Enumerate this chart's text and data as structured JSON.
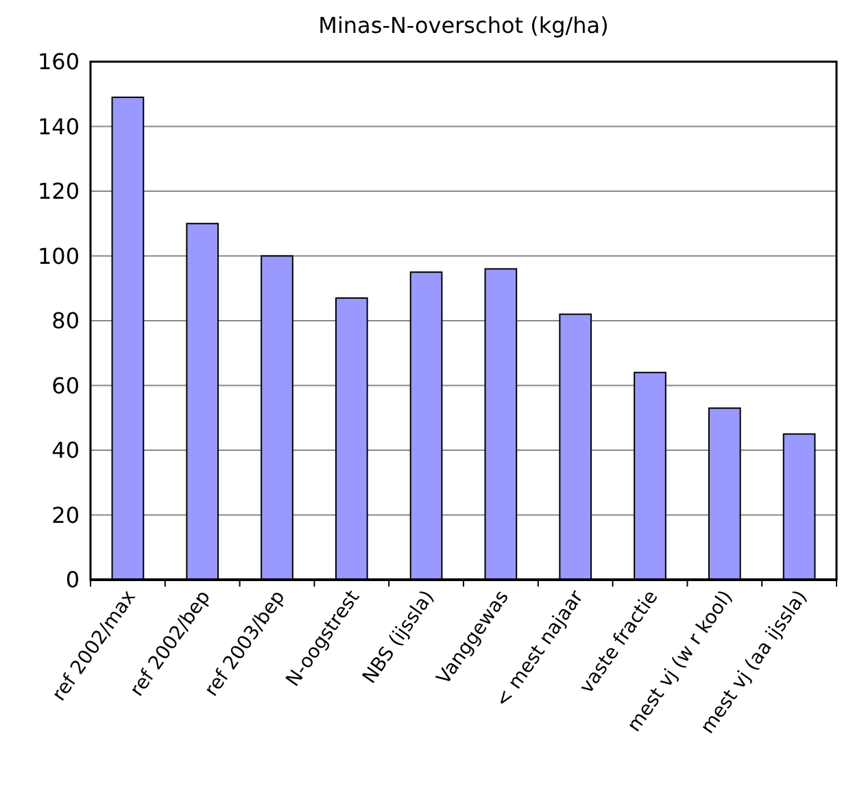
{
  "chart_data": {
    "type": "bar",
    "title": "Minas-N-overschot (kg/ha)",
    "categories": [
      "ref 2002/max",
      "ref 2002/bep",
      "ref 2003/bep",
      "N-oogstrest",
      "NBS (ijssla)",
      "Vanggewas",
      "< mest najaar",
      "vaste fractie",
      "mest vj (w r kool)",
      "mest vj (aa ijssla)"
    ],
    "values": [
      149,
      110,
      100,
      87,
      95,
      96,
      82,
      64,
      53,
      45
    ],
    "color": "#9999ff",
    "ylim": [
      0,
      160
    ],
    "yticks": [
      0,
      20,
      40,
      60,
      80,
      100,
      120,
      140,
      160
    ],
    "grid": true
  }
}
